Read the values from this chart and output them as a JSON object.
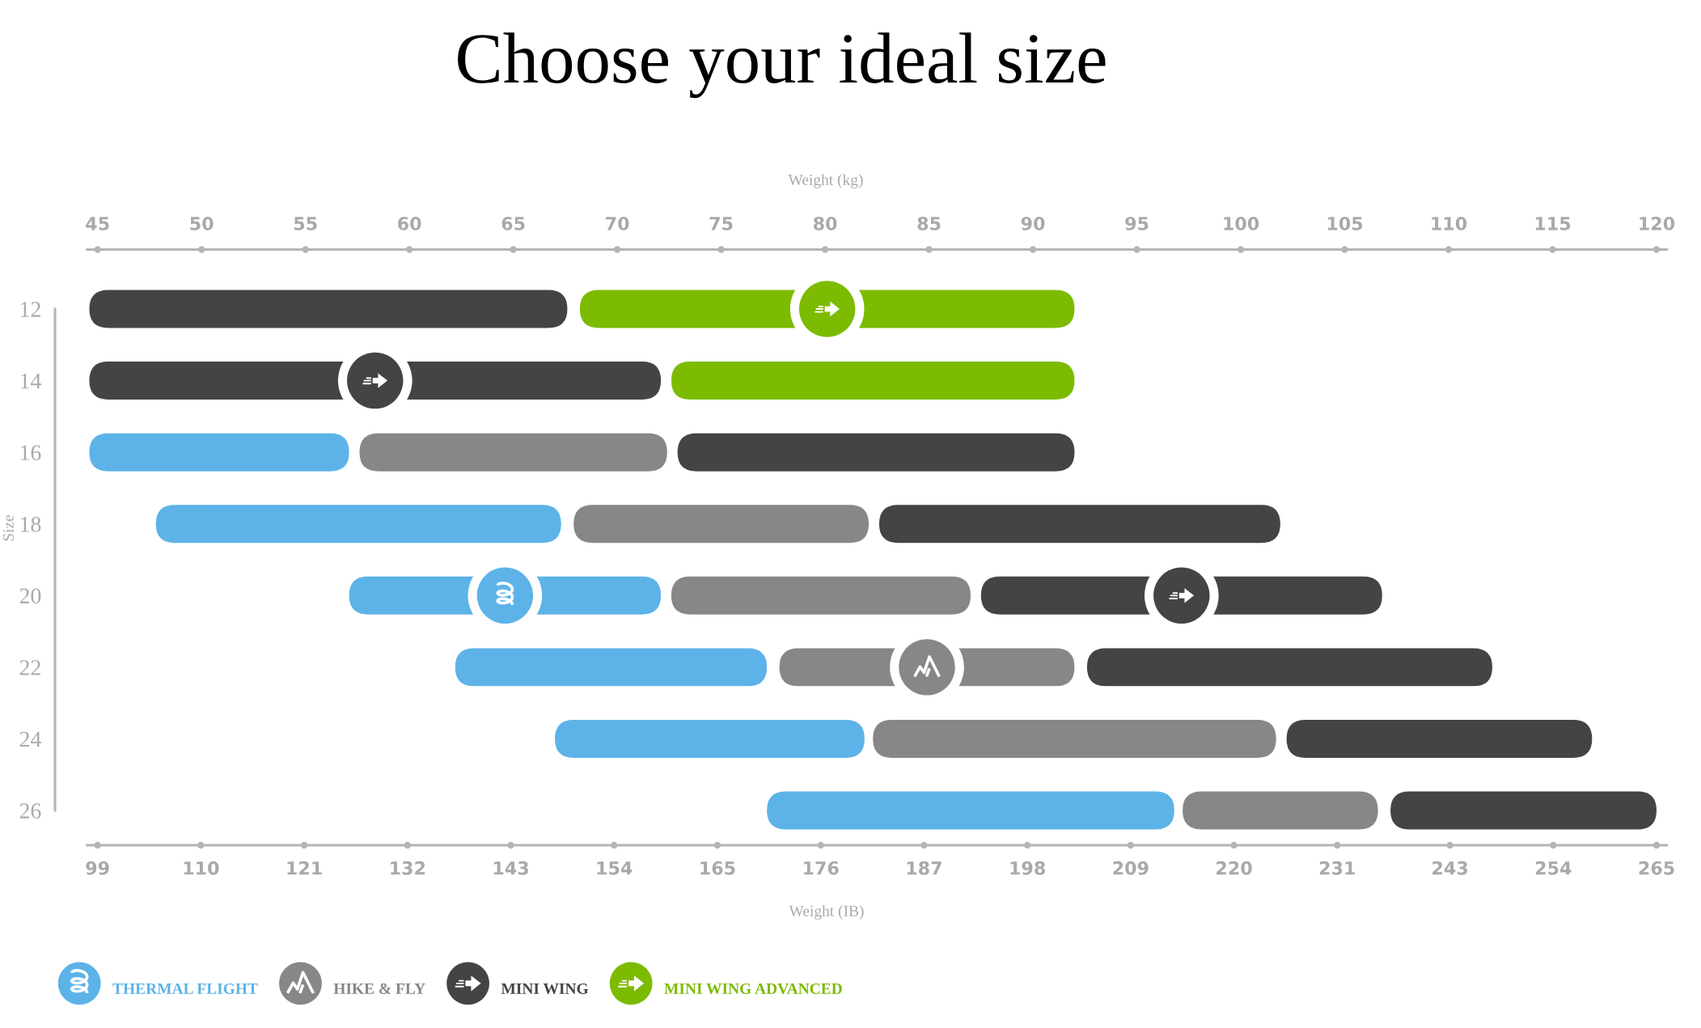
{
  "chart_data": {
    "type": "bar",
    "orientation": "horizontal",
    "title": "Choose your ideal size",
    "xlabel": "Weight (IB)",
    "x2label": "Weight (kg)",
    "ylabel": "Size",
    "categories": [
      "12",
      "14",
      "16",
      "18",
      "20",
      "22",
      "24",
      "26"
    ],
    "xlim": [
      97.9,
      266.1
    ],
    "xticks": [
      99,
      110,
      121,
      132,
      143,
      154,
      165,
      176,
      187,
      198,
      209,
      220,
      231,
      243,
      254,
      265
    ],
    "x2lim": [
      44.5,
      120.5
    ],
    "x2ticks": [
      45,
      50,
      55,
      60,
      65,
      70,
      75,
      80,
      85,
      90,
      95,
      100,
      105,
      110,
      115,
      120
    ],
    "legend": "bottom",
    "series": [
      {
        "name": "THERMAL FLIGHT",
        "color": "#5db3e8",
        "axis": "x2",
        "base": [
          null,
          null,
          44.6,
          47.8,
          57.1,
          62.2,
          67.0,
          77.2
        ],
        "values": [
          null,
          null,
          12.5,
          19.5,
          15.0,
          15.0,
          14.9,
          19.6
        ]
      },
      {
        "name": "HIKE & FLY",
        "color": "#878787",
        "axis": "x2",
        "base": [
          null,
          null,
          57.6,
          67.9,
          72.6,
          77.8,
          82.3,
          97.2
        ],
        "values": [
          null,
          null,
          14.8,
          14.2,
          14.4,
          14.2,
          19.4,
          9.4
        ]
      },
      {
        "name": "MINI WING",
        "color": "#444444",
        "axis": "x2",
        "base": [
          44.6,
          44.6,
          72.9,
          82.6,
          87.5,
          92.6,
          102.2,
          107.2
        ],
        "values": [
          23.0,
          27.5,
          19.1,
          19.3,
          19.3,
          19.5,
          14.7,
          12.8
        ]
      },
      {
        "name": "MINI WING ADVANCED",
        "color": "#7cbb00",
        "axis": "x2",
        "base": [
          68.2,
          72.6,
          null,
          null,
          null,
          null,
          null,
          null
        ],
        "values": [
          23.8,
          19.4,
          null,
          null,
          null,
          null,
          null,
          null
        ]
      }
    ]
  }
}
